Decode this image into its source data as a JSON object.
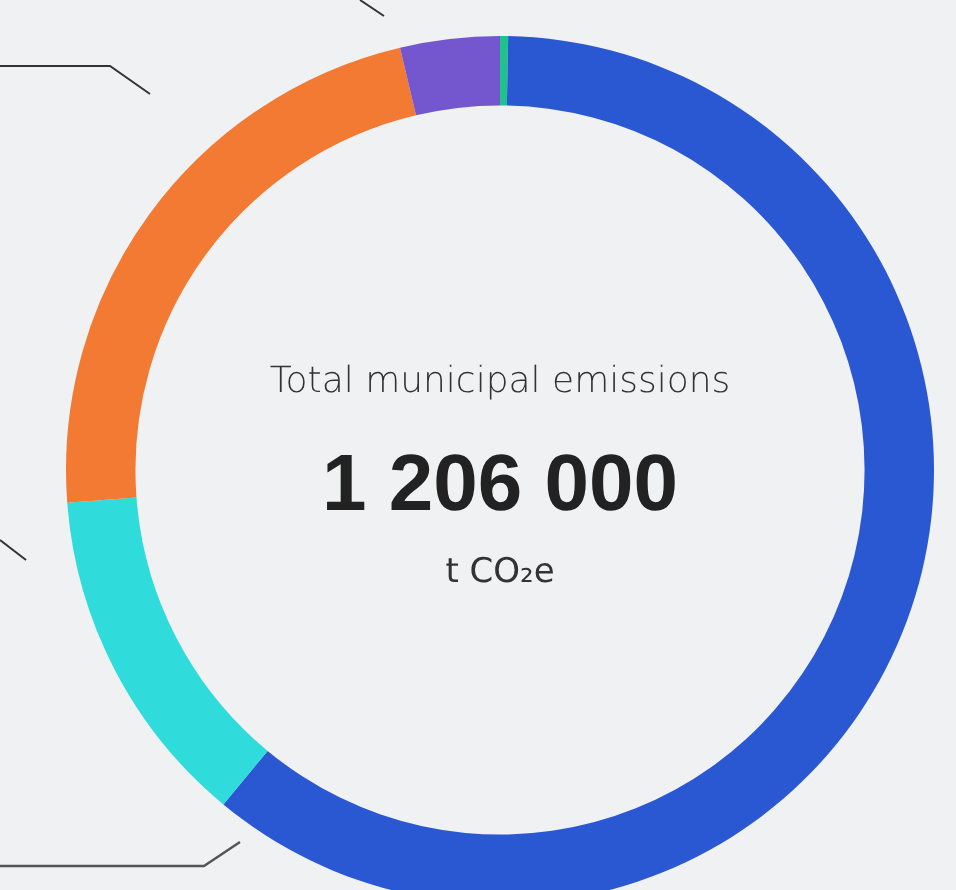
{
  "chart_data": {
    "type": "donut",
    "title": "Total municipal emissions",
    "annotations": [
      "1 206 000",
      "t CO₂e"
    ],
    "categories": [
      null,
      null,
      null,
      null,
      null
    ],
    "values": [
      0.3,
      60.7,
      12.8,
      22.5,
      3.7
    ],
    "colors": [
      "#1fc28a",
      "#2a58d2",
      "#2fdbdb",
      "#f27a32",
      "#7457cf"
    ]
  }
}
